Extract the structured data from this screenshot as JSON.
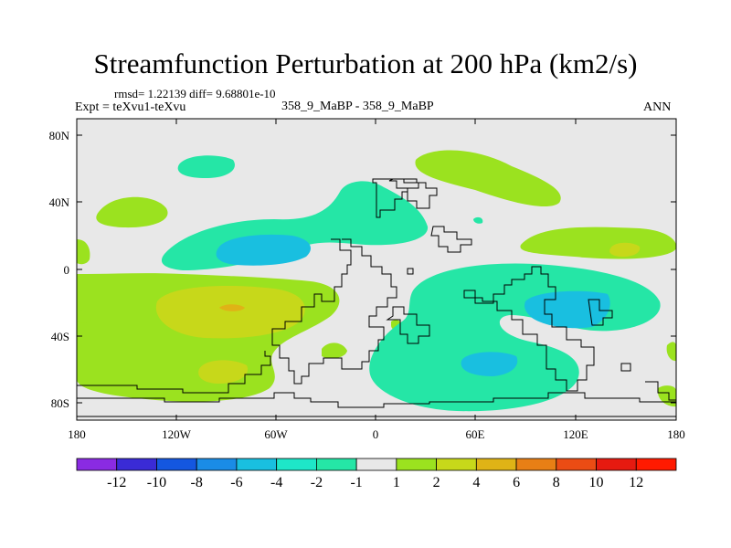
{
  "title": "Streamfunction Perturbation at 200 hPa (km2/s)",
  "stats": "rmsd= 1.22139 diff= 9.68801e-10",
  "experiment": "Expt = teXvu1-teXvu",
  "case_label": "358_9_MaBP - 358_9_MaBP",
  "season": "ANN",
  "lat_labels": [
    "80N",
    "40N",
    "0",
    "40S",
    "80S"
  ],
  "lon_labels": [
    "180",
    "120W",
    "60W",
    "0",
    "60E",
    "120E",
    "180"
  ],
  "colorbar": {
    "labels": [
      "-12",
      "-10",
      "-8",
      "-6",
      "-4",
      "-2",
      "-1",
      "1",
      "2",
      "4",
      "6",
      "8",
      "10",
      "12"
    ],
    "colors": [
      "#8a2be2",
      "#3a2bd6",
      "#1457e0",
      "#1a8ce6",
      "#19bfe0",
      "#1ee6c8",
      "#25e6a6",
      "#e8e8e8",
      "#9be21f",
      "#c7d81a",
      "#dfb316",
      "#e87f15",
      "#eb4c14",
      "#e61a10",
      "#ff1a00"
    ]
  },
  "fill_colors": {
    "neutral": "#e8e8e8",
    "neg1": "#25e6a6",
    "neg2": "#19bfe0",
    "pos1": "#9be21f",
    "pos2": "#c7d81a",
    "pos3": "#dfb316"
  }
}
